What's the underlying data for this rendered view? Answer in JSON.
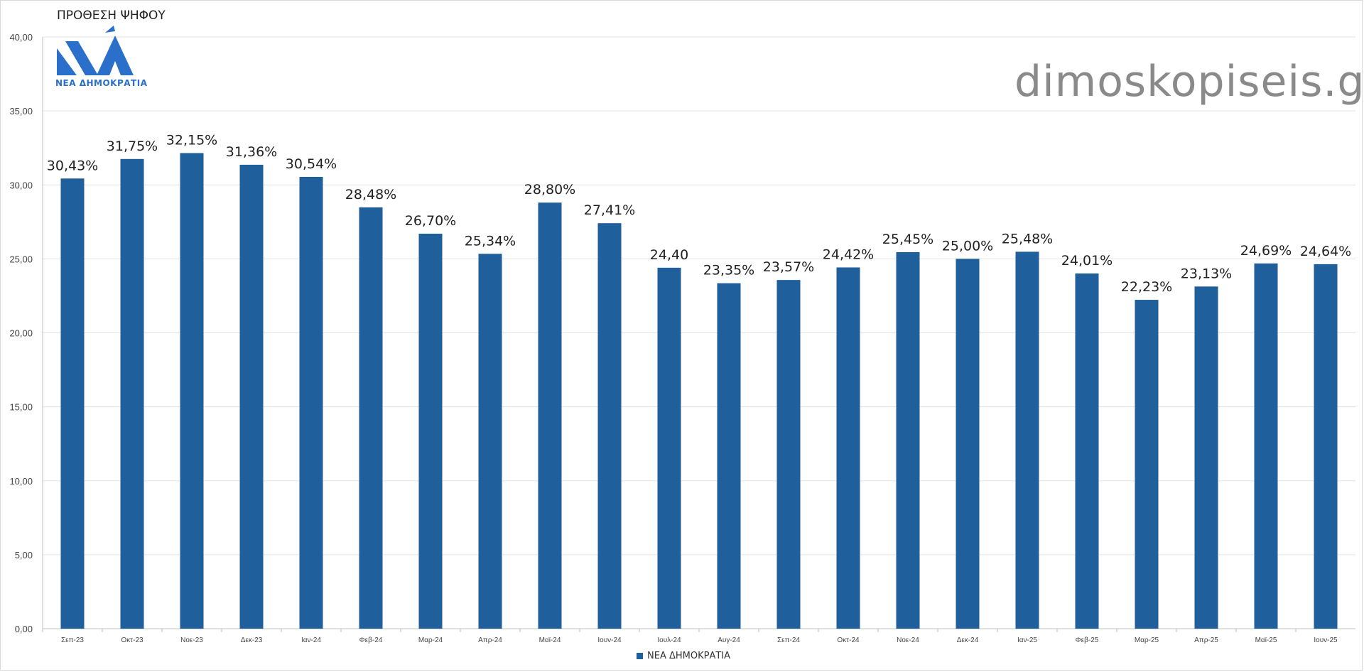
{
  "header": {
    "title": "ΠΡΟΘΕΣΗ ΨΗΦΟΥ",
    "watermark": "dimoskopiseis.gr",
    "logo_text": "ΝΕΑ ΔΗΜΟΚΡΑΤΙΑ"
  },
  "colors": {
    "bar": "#1F5F9B",
    "logo": "#2A6FC9",
    "grid": "#E3E3E3"
  },
  "chart_data": {
    "type": "bar",
    "categories": [
      "Σεπ-23",
      "Οκτ-23",
      "Νοε-23",
      "Δεκ-23",
      "Ιαν-24",
      "Φεβ-24",
      "Μαρ-24",
      "Απρ-24",
      "Μαϊ-24",
      "Ιουν-24",
      "Ιουλ-24",
      "Αυγ-24",
      "Σεπ-24",
      "Οκτ-24",
      "Νοε-24",
      "Δεκ-24",
      "Ιαν-25",
      "Φεβ-25",
      "Μαρ-25",
      "Απρ-25",
      "Μαϊ-25",
      "Ιουν-25"
    ],
    "series": [
      {
        "name": "ΝΕΑ ΔΗΜΟΚΡΑΤΙΑ",
        "values": [
          30.43,
          31.75,
          32.15,
          31.36,
          30.54,
          28.48,
          26.7,
          25.34,
          28.8,
          27.41,
          24.4,
          23.35,
          23.57,
          24.42,
          25.45,
          25.0,
          25.48,
          24.01,
          22.23,
          23.13,
          24.69,
          24.64
        ],
        "labels": [
          "30,43%",
          "31,75%",
          "32,15%",
          "31,36%",
          "30,54%",
          "28,48%",
          "26,70%",
          "25,34%",
          "28,80%",
          "27,41%",
          "24,40",
          "23,35%",
          "23,57%",
          "24,42%",
          "25,45%",
          "25,00%",
          "25,48%",
          "24,01%",
          "22,23%",
          "23,13%",
          "24,69%",
          "24,64%"
        ]
      }
    ],
    "yticks": [
      "0,00",
      "5,00",
      "10,00",
      "15,00",
      "20,00",
      "25,00",
      "30,00",
      "35,00",
      "40,00"
    ],
    "ylim": [
      0,
      40
    ],
    "grid": true,
    "legend": "bottom-center"
  }
}
